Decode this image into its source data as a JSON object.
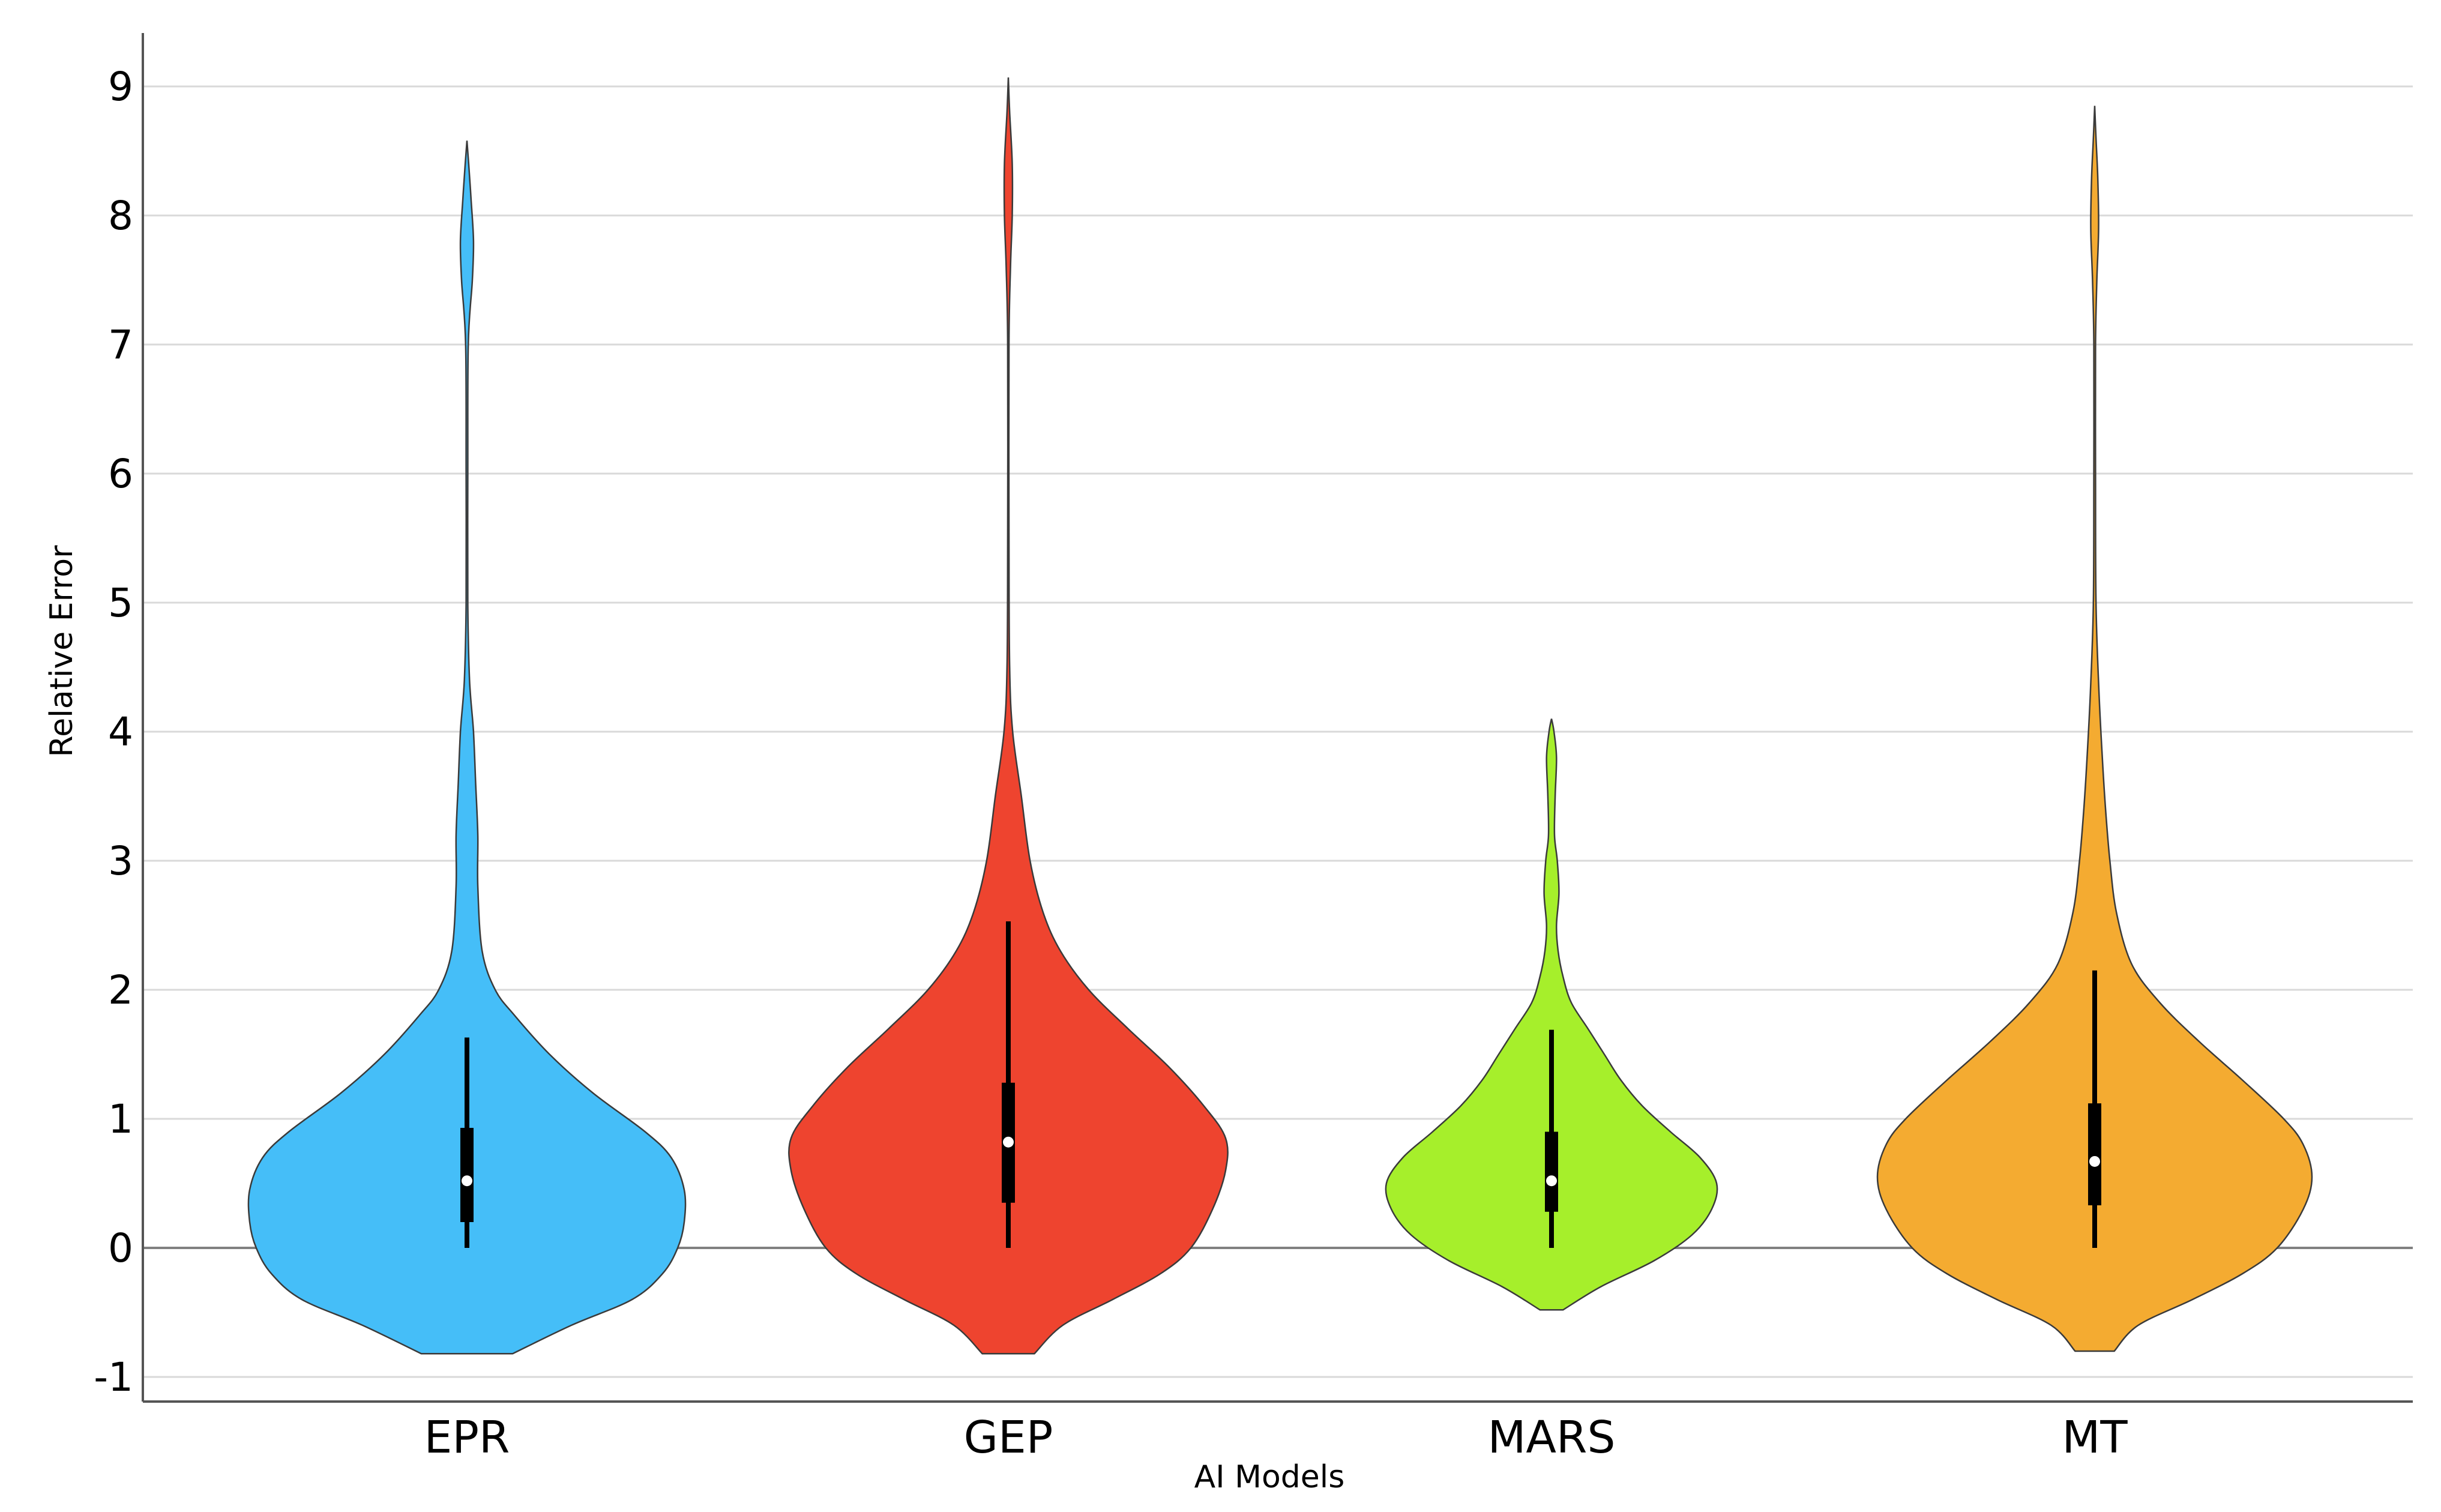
{
  "chart_data": {
    "type": "violin",
    "xlabel": "AI Models",
    "ylabel": "Relative Error",
    "ylim": [
      -1.2,
      9.4
    ],
    "yticks": [
      -1,
      0,
      1,
      2,
      3,
      4,
      5,
      6,
      7,
      8,
      9
    ],
    "grid": true,
    "categories": [
      "EPR",
      "GEP",
      "MARS",
      "MT"
    ],
    "series": [
      {
        "category": "EPR",
        "color": "#45BEF8",
        "min": 0,
        "q1": 0.2,
        "median": 0.52,
        "q3": 0.93,
        "whisker_high": 1.63,
        "kde_min": -0.82,
        "kde_max": 8.58,
        "density": [
          [
            -0.82,
            0.21
          ],
          [
            -0.6,
            0.48
          ],
          [
            -0.4,
            0.76
          ],
          [
            -0.2,
            0.9
          ],
          [
            0.0,
            0.97
          ],
          [
            0.2,
            1.0
          ],
          [
            0.45,
            1.0
          ],
          [
            0.7,
            0.94
          ],
          [
            0.9,
            0.82
          ],
          [
            1.2,
            0.58
          ],
          [
            1.5,
            0.38
          ],
          [
            1.8,
            0.22
          ],
          [
            2.0,
            0.13
          ],
          [
            2.3,
            0.07
          ],
          [
            2.8,
            0.05
          ],
          [
            3.2,
            0.05
          ],
          [
            3.6,
            0.04
          ],
          [
            4.0,
            0.03
          ],
          [
            4.4,
            0.012
          ],
          [
            5.0,
            0.004
          ],
          [
            6.0,
            0.004
          ],
          [
            7.0,
            0.006
          ],
          [
            7.5,
            0.025
          ],
          [
            7.8,
            0.03
          ],
          [
            8.1,
            0.02
          ],
          [
            8.4,
            0.008
          ],
          [
            8.58,
            0.0
          ]
        ]
      },
      {
        "category": "GEP",
        "color": "#EE442F",
        "min": 0,
        "q1": 0.35,
        "median": 0.82,
        "q3": 1.28,
        "whisker_high": 2.53,
        "kde_min": -0.82,
        "kde_max": 9.07,
        "density": [
          [
            -0.82,
            0.12
          ],
          [
            -0.6,
            0.25
          ],
          [
            -0.4,
            0.48
          ],
          [
            -0.2,
            0.7
          ],
          [
            0.0,
            0.84
          ],
          [
            0.3,
            0.94
          ],
          [
            0.6,
            1.0
          ],
          [
            0.85,
            1.0
          ],
          [
            1.1,
            0.9
          ],
          [
            1.4,
            0.74
          ],
          [
            1.7,
            0.55
          ],
          [
            2.0,
            0.37
          ],
          [
            2.3,
            0.24
          ],
          [
            2.6,
            0.16
          ],
          [
            3.0,
            0.1
          ],
          [
            3.5,
            0.06
          ],
          [
            4.0,
            0.02
          ],
          [
            4.5,
            0.006
          ],
          [
            5.5,
            0.003
          ],
          [
            7.0,
            0.003
          ],
          [
            7.6,
            0.01
          ],
          [
            8.0,
            0.018
          ],
          [
            8.4,
            0.018
          ],
          [
            8.8,
            0.006
          ],
          [
            9.07,
            0.0
          ]
        ]
      },
      {
        "category": "MARS",
        "color": "#A6EF2B",
        "min": 0,
        "q1": 0.28,
        "median": 0.52,
        "q3": 0.9,
        "whisker_high": 1.69,
        "kde_min": -0.48,
        "kde_max": 4.1,
        "density": [
          [
            -0.48,
            0.07
          ],
          [
            -0.3,
            0.3
          ],
          [
            -0.1,
            0.62
          ],
          [
            0.1,
            0.85
          ],
          [
            0.3,
            0.97
          ],
          [
            0.5,
            1.0
          ],
          [
            0.7,
            0.9
          ],
          [
            0.9,
            0.72
          ],
          [
            1.1,
            0.55
          ],
          [
            1.3,
            0.42
          ],
          [
            1.5,
            0.32
          ],
          [
            1.7,
            0.22
          ],
          [
            1.9,
            0.12
          ],
          [
            2.1,
            0.07
          ],
          [
            2.3,
            0.04
          ],
          [
            2.5,
            0.03
          ],
          [
            2.75,
            0.045
          ],
          [
            3.0,
            0.035
          ],
          [
            3.2,
            0.018
          ],
          [
            3.5,
            0.022
          ],
          [
            3.8,
            0.03
          ],
          [
            4.0,
            0.015
          ],
          [
            4.1,
            0.0
          ]
        ]
      },
      {
        "category": "MT",
        "color": "#F4AB31",
        "min": 0,
        "q1": 0.33,
        "median": 0.67,
        "q3": 1.12,
        "whisker_high": 2.15,
        "kde_min": -0.8,
        "kde_max": 8.85,
        "density": [
          [
            -0.8,
            0.09
          ],
          [
            -0.6,
            0.2
          ],
          [
            -0.4,
            0.45
          ],
          [
            -0.2,
            0.68
          ],
          [
            0.0,
            0.84
          ],
          [
            0.3,
            0.96
          ],
          [
            0.55,
            1.0
          ],
          [
            0.8,
            0.96
          ],
          [
            1.0,
            0.87
          ],
          [
            1.3,
            0.68
          ],
          [
            1.6,
            0.48
          ],
          [
            1.9,
            0.3
          ],
          [
            2.2,
            0.17
          ],
          [
            2.6,
            0.1
          ],
          [
            3.0,
            0.07
          ],
          [
            3.4,
            0.05
          ],
          [
            3.8,
            0.035
          ],
          [
            4.3,
            0.02
          ],
          [
            5.0,
            0.006
          ],
          [
            6.0,
            0.004
          ],
          [
            7.0,
            0.004
          ],
          [
            7.5,
            0.01
          ],
          [
            7.9,
            0.018
          ],
          [
            8.3,
            0.014
          ],
          [
            8.6,
            0.006
          ],
          [
            8.85,
            0.0
          ]
        ]
      }
    ]
  }
}
